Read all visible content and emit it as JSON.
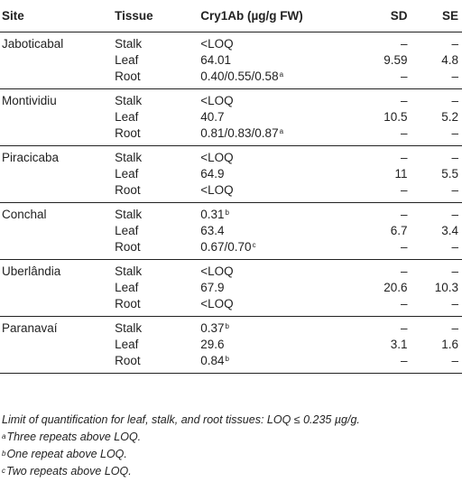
{
  "headers": {
    "site": "Site",
    "tissue": "Tissue",
    "conc": "Cry1Ab (µg/g FW)",
    "sd": "SD",
    "se": "SE"
  },
  "groups": [
    {
      "site": "Jaboticabal",
      "rows": [
        {
          "tissue": "Stalk",
          "conc": "<LOQ",
          "sup": "",
          "sd": "–",
          "se": "–"
        },
        {
          "tissue": "Leaf",
          "conc": "64.01",
          "sup": "",
          "sd": "9.59",
          "se": "4.8"
        },
        {
          "tissue": "Root",
          "conc": "0.40/0.55/0.58",
          "sup": "a",
          "sd": "–",
          "se": "–"
        }
      ]
    },
    {
      "site": "Montividiu",
      "rows": [
        {
          "tissue": "Stalk",
          "conc": "<LOQ",
          "sup": "",
          "sd": "–",
          "se": "–"
        },
        {
          "tissue": "Leaf",
          "conc": "40.7",
          "sup": "",
          "sd": "10.5",
          "se": "5.2"
        },
        {
          "tissue": "Root",
          "conc": "0.81/0.83/0.87",
          "sup": "a",
          "sd": "–",
          "se": "–"
        }
      ]
    },
    {
      "site": "Piracicaba",
      "rows": [
        {
          "tissue": "Stalk",
          "conc": "<LOQ",
          "sup": "",
          "sd": "–",
          "se": "–"
        },
        {
          "tissue": "Leaf",
          "conc": "64.9",
          "sup": "",
          "sd": "11",
          "se": "5.5"
        },
        {
          "tissue": "Root",
          "conc": "<LOQ",
          "sup": "",
          "sd": "–",
          "se": "–"
        }
      ]
    },
    {
      "site": "Conchal",
      "rows": [
        {
          "tissue": "Stalk",
          "conc": "0.31",
          "sup": "b",
          "sd": "–",
          "se": "–"
        },
        {
          "tissue": "Leaf",
          "conc": "63.4",
          "sup": "",
          "sd": "6.7",
          "se": "3.4"
        },
        {
          "tissue": "Root",
          "conc": "0.67/0.70",
          "sup": "c",
          "sd": "–",
          "se": "–"
        }
      ]
    },
    {
      "site": "Uberlândia",
      "rows": [
        {
          "tissue": "Stalk",
          "conc": "<LOQ",
          "sup": "",
          "sd": "–",
          "se": "–"
        },
        {
          "tissue": "Leaf",
          "conc": "67.9",
          "sup": "",
          "sd": "20.6",
          "se": "10.3"
        },
        {
          "tissue": "Root",
          "conc": "<LOQ",
          "sup": "",
          "sd": "–",
          "se": "–"
        }
      ]
    },
    {
      "site": "Paranavaí",
      "rows": [
        {
          "tissue": "Stalk",
          "conc": "0.37",
          "sup": "b",
          "sd": "–",
          "se": "–"
        },
        {
          "tissue": "Leaf",
          "conc": "29.6",
          "sup": "",
          "sd": "3.1",
          "se": "1.6"
        },
        {
          "tissue": "Root",
          "conc": "0.84",
          "sup": "b",
          "sd": "–",
          "se": "–"
        }
      ]
    }
  ],
  "notes": {
    "loq": "Limit of quantification for leaf, stalk, and root tissues: LOQ ≤ 0.235 µg/g.",
    "a_mark": "a",
    "a_text": "Three repeats above LOQ.",
    "b_mark": "b",
    "b_text": "One repeat above LOQ.",
    "c_mark": "c",
    "c_text": "Two repeats above LOQ."
  }
}
